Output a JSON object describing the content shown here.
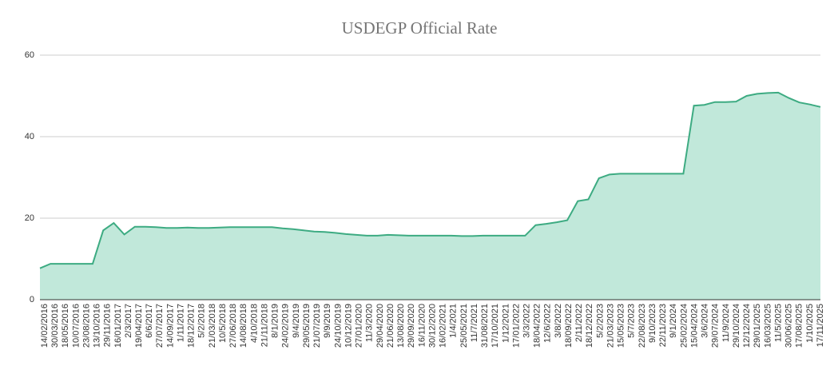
{
  "chart_data": {
    "type": "area",
    "title": "USDEGP Official Rate",
    "categories": [
      "14/02/2016",
      "30/03/2016",
      "18/05/2016",
      "10/07/2016",
      "23/08/2016",
      "13/10/2016",
      "29/11/2016",
      "16/01/2017",
      "2/3/2017",
      "19/04/2017",
      "6/6/2017",
      "27/07/2017",
      "14/09/2017",
      "1/11/2017",
      "18/12/2017",
      "5/2/2018",
      "21/03/2018",
      "10/5/2018",
      "27/06/2018",
      "14/08/2018",
      "4/10/2018",
      "21/11/2018",
      "8/1/2019",
      "24/02/2019",
      "9/4/2019",
      "29/05/2019",
      "21/07/2019",
      "9/9/2019",
      "24/10/2019",
      "10/12/2019",
      "27/01/2020",
      "11/3/2020",
      "29/04/2020",
      "21/06/2020",
      "13/08/2020",
      "29/09/2020",
      "16/11/2020",
      "30/12/2020",
      "16/02/2021",
      "1/4/2021",
      "25/05/2021",
      "11/7/2021",
      "31/08/2021",
      "17/10/2021",
      "1/12/2021",
      "17/01/2022",
      "3/3/2022",
      "18/04/2022",
      "12/6/2022",
      "3/8/2022",
      "18/09/2022",
      "2/11/2022",
      "18/12/2022",
      "5/2/2023",
      "21/03/2023",
      "15/05/2023",
      "5/7/2023",
      "22/08/2023",
      "9/10/2023",
      "22/11/2023",
      "9/1/2024",
      "25/02/2024",
      "15/04/2024",
      "3/6/2024",
      "29/07/2024",
      "11/9/2024",
      "29/10/2024",
      "12/12/2024",
      "29/01/2025",
      "16/03/2025",
      "11/5/2025",
      "30/06/2025",
      "17/08/2025",
      "1/10/2025",
      "17/11/2025"
    ],
    "values": [
      7.7,
      8.8,
      8.8,
      8.8,
      8.8,
      8.8,
      17,
      18.8,
      16,
      17.9,
      17.9,
      17.8,
      17.6,
      17.6,
      17.7,
      17.6,
      17.6,
      17.7,
      17.8,
      17.8,
      17.8,
      17.8,
      17.8,
      17.5,
      17.3,
      17.0,
      16.7,
      16.6,
      16.4,
      16.1,
      15.9,
      15.7,
      15.7,
      15.9,
      15.8,
      15.7,
      15.7,
      15.7,
      15.7,
      15.7,
      15.6,
      15.6,
      15.7,
      15.7,
      15.7,
      15.7,
      15.7,
      18.3,
      18.6,
      19.0,
      19.5,
      24.2,
      24.6,
      29.8,
      30.7,
      30.9,
      30.9,
      30.9,
      30.9,
      30.9,
      30.9,
      30.9,
      47.6,
      47.8,
      48.5,
      48.5,
      48.6,
      50.0,
      50.5,
      50.7,
      50.8,
      49.5,
      48.4,
      47.9,
      47.3
    ],
    "color": "#3dab82",
    "fill": "#c1e8da",
    "ylim": [
      0,
      60
    ],
    "yticks": [
      0,
      20,
      40,
      60
    ],
    "grid": true
  }
}
